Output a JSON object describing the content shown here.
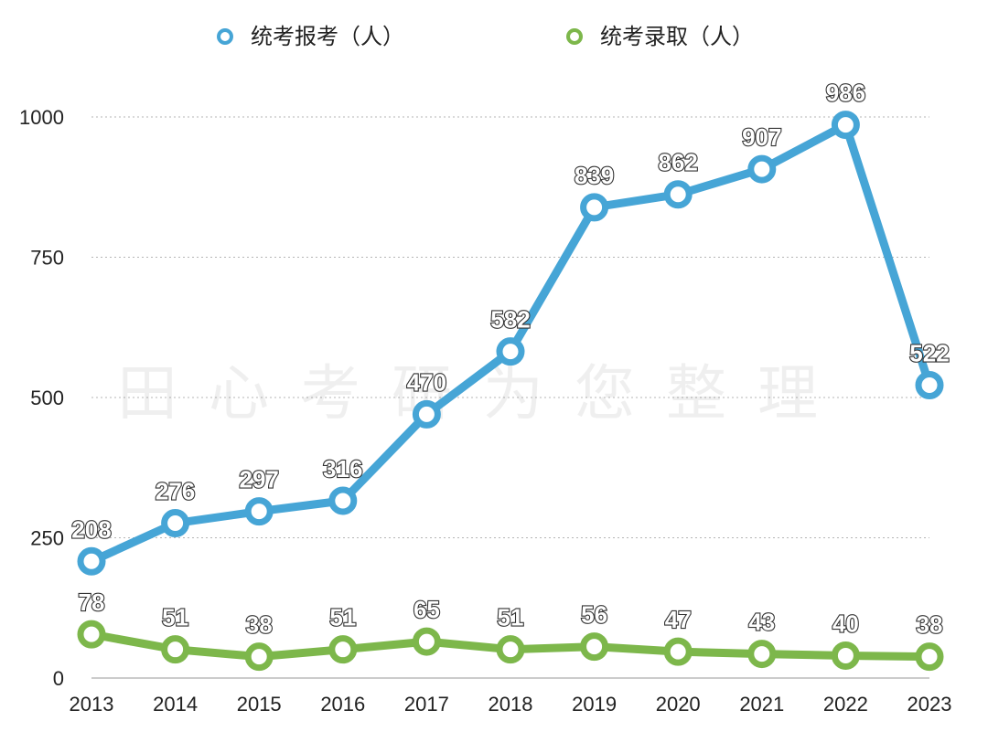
{
  "chart_data": {
    "type": "line",
    "title": "",
    "xlabel": "",
    "ylabel": "",
    "categories": [
      "2013",
      "2014",
      "2015",
      "2016",
      "2017",
      "2018",
      "2019",
      "2020",
      "2021",
      "2022",
      "2023"
    ],
    "ylim": [
      0,
      1000
    ],
    "yticks": [
      0,
      250,
      500,
      750,
      1000
    ],
    "grid": true,
    "legend_position": "top",
    "series": [
      {
        "name": "统考报考（人）",
        "color": "#46A5D6",
        "values": [
          208,
          276,
          297,
          316,
          470,
          582,
          839,
          862,
          907,
          986,
          522
        ]
      },
      {
        "name": "统考录取（人）",
        "color": "#7DB74B",
        "values": [
          78,
          51,
          38,
          51,
          65,
          51,
          56,
          47,
          43,
          40,
          38
        ]
      }
    ],
    "watermark": "田心考研为您整理"
  }
}
